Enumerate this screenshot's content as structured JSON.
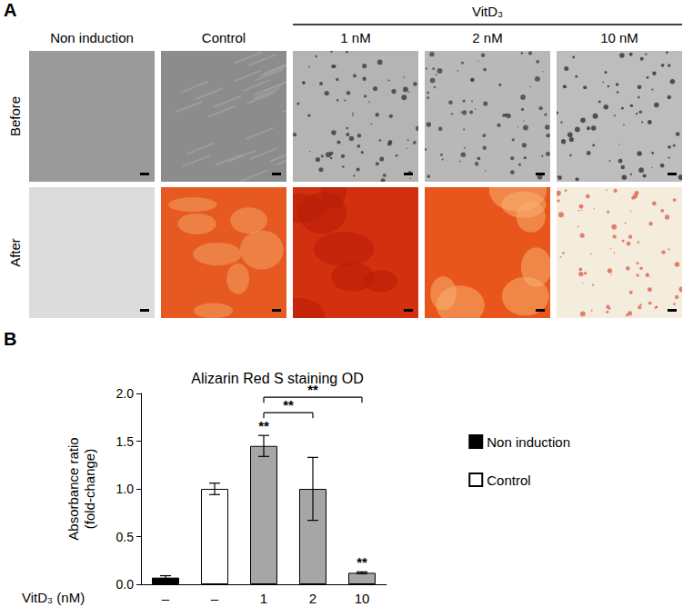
{
  "panel_a": {
    "label": "A",
    "group_label": "VitD₃",
    "group_columns": [
      2,
      3,
      4
    ],
    "columns": [
      "Non induction",
      "Control",
      "1 nM",
      "2 nM",
      "10 nM"
    ],
    "rows": [
      "Before",
      "After"
    ]
  },
  "panel_b_label": "B",
  "chart_data": {
    "type": "bar",
    "title": "Alizarin Red S staining OD",
    "x_label": "VitD₃ (nM)",
    "y_label": "Absorbance ratio\n(fold-change)",
    "categories": [
      "–",
      "–",
      "1",
      "2",
      "10"
    ],
    "series": [
      {
        "name": "Non induction",
        "color": "#000000",
        "values": [
          0.07,
          null,
          null,
          null,
          null
        ],
        "errors": [
          0.02,
          null,
          null,
          null,
          null
        ]
      },
      {
        "name": "Control",
        "color": "#ffffff",
        "values": [
          null,
          1.0,
          null,
          null,
          null
        ],
        "errors": [
          null,
          0.06,
          null,
          null,
          null
        ]
      },
      {
        "color": "#a6a6a6",
        "values": [
          null,
          null,
          1.45,
          1.0,
          0.12
        ],
        "errors": [
          null,
          null,
          0.11,
          0.33,
          0.01
        ]
      }
    ],
    "significance": [
      null,
      null,
      "**",
      null,
      "**"
    ],
    "comparisons": [
      {
        "from": 2,
        "to": 3,
        "label": "**"
      },
      {
        "from": 2,
        "to": 4,
        "label": "**"
      }
    ],
    "ylim": [
      0,
      2
    ],
    "yticks": [
      {
        "value": 0,
        "label": "0.0"
      },
      {
        "value": 0.5,
        "label": "0.5"
      },
      {
        "value": 1,
        "label": "1.0"
      },
      {
        "value": 1.5,
        "label": "1.5"
      },
      {
        "value": 2,
        "label": "2.0"
      }
    ],
    "grid": false,
    "legend": "right"
  }
}
